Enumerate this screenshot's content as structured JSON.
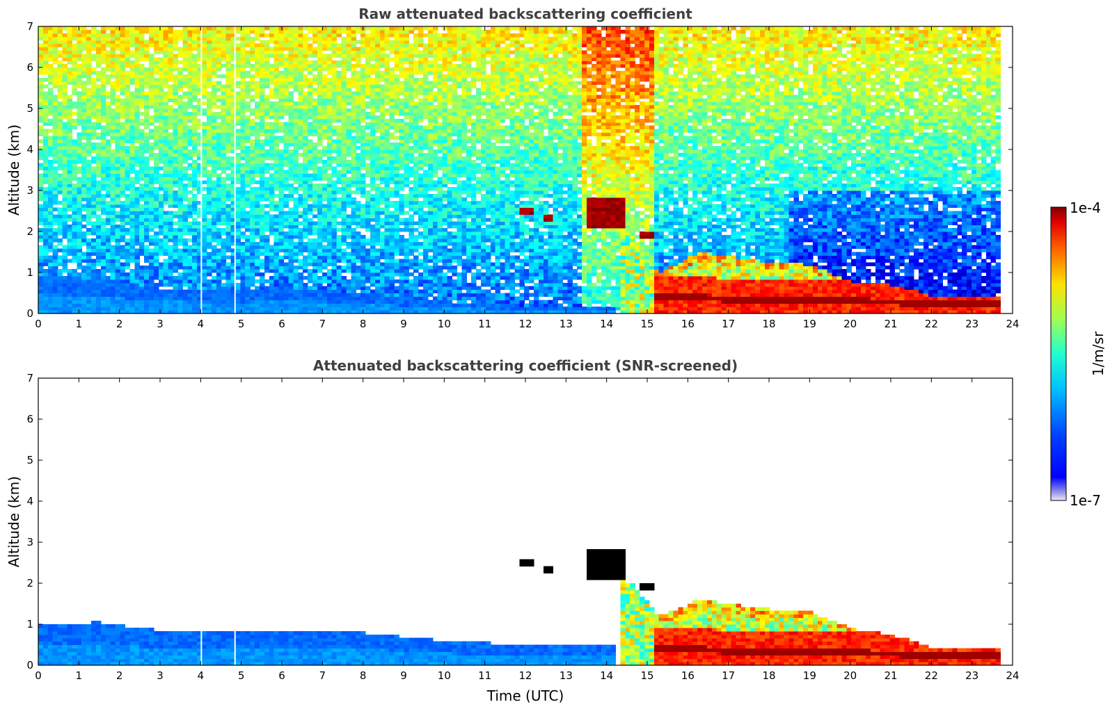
{
  "chart_data": [
    {
      "type": "heatmap",
      "title": "Raw attenuated backscattering coefficient",
      "xlabel": "",
      "ylabel": "Altitude (km)",
      "xlim": [
        0,
        24
      ],
      "ylim": [
        0,
        7
      ],
      "x_ticks": [
        "0",
        "1",
        "2",
        "3",
        "4",
        "5",
        "6",
        "7",
        "8",
        "9",
        "10",
        "11",
        "12",
        "13",
        "14",
        "15",
        "16",
        "17",
        "18",
        "19",
        "20",
        "21",
        "22",
        "23",
        "24"
      ],
      "y_ticks": [
        "0",
        "1",
        "2",
        "3",
        "4",
        "5",
        "6",
        "7"
      ],
      "data_end_time": 23.7,
      "noise_field": true,
      "boundary_layer_top_km": [
        [
          0,
          0.95
        ],
        [
          1.5,
          0.85
        ],
        [
          3,
          0.6
        ],
        [
          5,
          0.55
        ],
        [
          6,
          0.65
        ],
        [
          8,
          0.5
        ],
        [
          10,
          0.3
        ],
        [
          12,
          0.2
        ],
        [
          13,
          0.15
        ]
      ],
      "cloud_layers": [
        {
          "time": [
            11.9,
            12.2
          ],
          "altitude_km": [
            2.45,
            2.6
          ]
        },
        {
          "time": [
            12.4,
            12.7
          ],
          "altitude_km": [
            2.25,
            2.4
          ]
        },
        {
          "time": [
            13.5,
            14.4
          ],
          "altitude_km": [
            2.1,
            2.8
          ]
        },
        {
          "time": [
            14.8,
            15.2
          ],
          "altitude_km": [
            1.85,
            2.0
          ]
        }
      ],
      "aerosol_layer_top_km": [
        [
          13.5,
          2.8
        ],
        [
          14.4,
          2.1
        ],
        [
          15.3,
          1.0
        ],
        [
          16.3,
          1.5
        ],
        [
          17.7,
          1.3
        ],
        [
          19,
          1.2
        ],
        [
          20,
          0.8
        ],
        [
          21,
          0.7
        ],
        [
          22,
          0.45
        ],
        [
          23.7,
          0.4
        ]
      ],
      "dense_layer_km": [
        [
          15.3,
          0.4
        ],
        [
          18,
          0.35
        ],
        [
          20,
          0.3
        ],
        [
          22,
          0.28
        ],
        [
          23.7,
          0.27
        ]
      ]
    },
    {
      "type": "heatmap",
      "title": "Attenuated backscattering coefficient (SNR-screened)",
      "xlabel": "Time (UTC)",
      "ylabel": "Altitude (km)",
      "xlim": [
        0,
        24
      ],
      "ylim": [
        0,
        7
      ],
      "x_ticks": [
        "0",
        "1",
        "2",
        "3",
        "4",
        "5",
        "6",
        "7",
        "8",
        "9",
        "10",
        "11",
        "12",
        "13",
        "14",
        "15",
        "16",
        "17",
        "18",
        "19",
        "20",
        "21",
        "22",
        "23",
        "24"
      ],
      "y_ticks": [
        "0",
        "1",
        "2",
        "3",
        "4",
        "5",
        "6",
        "7"
      ],
      "data_end_time": 23.7,
      "noise_field": false,
      "boundary_layer_top_km": [
        [
          0,
          1.0
        ],
        [
          1.5,
          1.05
        ],
        [
          3,
          0.85
        ],
        [
          5,
          0.8
        ],
        [
          6,
          0.85
        ],
        [
          8,
          0.8
        ],
        [
          10,
          0.6
        ],
        [
          12,
          0.5
        ],
        [
          14,
          0.5
        ]
      ],
      "cloud_layers": [
        {
          "time": [
            11.9,
            12.2
          ],
          "altitude_km": [
            2.45,
            2.6
          ]
        },
        {
          "time": [
            12.4,
            12.7
          ],
          "altitude_km": [
            2.25,
            2.4
          ]
        },
        {
          "time": [
            13.5,
            14.4
          ],
          "altitude_km": [
            2.1,
            2.8
          ]
        },
        {
          "time": [
            14.8,
            15.2
          ],
          "altitude_km": [
            1.85,
            2.0
          ]
        }
      ],
      "aerosol_layer_top_km": [
        [
          14.2,
          2.1
        ],
        [
          14.6,
          2.0
        ],
        [
          15.3,
          1.2
        ],
        [
          16.3,
          1.6
        ],
        [
          17.7,
          1.4
        ],
        [
          19,
          1.3
        ],
        [
          20,
          0.9
        ],
        [
          21,
          0.75
        ],
        [
          22,
          0.45
        ],
        [
          23.7,
          0.4
        ]
      ],
      "dense_layer_km": [
        [
          15.3,
          0.4
        ],
        [
          18,
          0.35
        ],
        [
          20,
          0.3
        ],
        [
          22,
          0.28
        ],
        [
          23.7,
          0.27
        ]
      ]
    }
  ],
  "colorbar": {
    "max_label": "1e-4",
    "min_label": "1e-7",
    "unit_label": "1/m/sr",
    "colormap": "jet",
    "low_end_colors": [
      "#e8e8f8",
      "#c8c8f0",
      "#a0a0ec",
      "#7878e8",
      "#4444e8"
    ]
  }
}
